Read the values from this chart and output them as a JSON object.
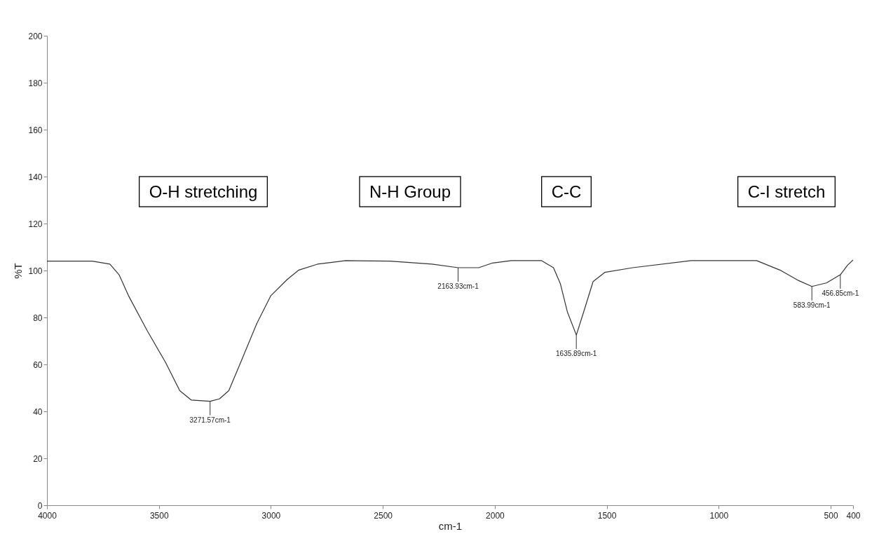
{
  "chart_data": {
    "type": "line",
    "xlabel": "cm-1",
    "ylabel": "%T",
    "x": [
      4000,
      3798,
      3719,
      3678,
      3636,
      3553,
      3469,
      3407,
      3355,
      3271.57,
      3230,
      3188,
      3136,
      3063,
      3000,
      2927,
      2875,
      2792,
      2708,
      2667,
      2468,
      2281,
      2163.93,
      2072,
      2010,
      1926,
      1791,
      1738,
      1707,
      1676,
      1635.89,
      1603,
      1561,
      1509,
      1384,
      1123,
      831,
      727,
      643,
      583.99,
      519,
      456.85,
      425,
      400
    ],
    "series": [
      {
        "color": "#333333",
        "values": [
          104,
          104,
          102.7,
          98.2,
          89.3,
          74.5,
          60.6,
          48.8,
          44.8,
          44.3,
          45.3,
          48.8,
          60.6,
          77.4,
          89.3,
          96.2,
          100.2,
          102.7,
          103.7,
          104.2,
          104,
          102.7,
          101.2,
          101.2,
          103.2,
          104.2,
          104.2,
          101.2,
          94.3,
          82.4,
          72.5,
          82.4,
          95.3,
          99.2,
          101.2,
          104.2,
          104.2,
          100.2,
          95.7,
          93.2,
          94.7,
          98.2,
          102.2,
          104.5
        ]
      }
    ],
    "xlim": [
      4000,
      400
    ],
    "xticks": [
      4000,
      3500,
      3000,
      2500,
      2000,
      1500,
      1000,
      500,
      400
    ],
    "ylim": [
      0,
      200
    ],
    "yticks": [
      0,
      20,
      40,
      60,
      80,
      100,
      120,
      140,
      160,
      180,
      200
    ],
    "grid": false,
    "marker": "none",
    "line_style": "solid",
    "annotations": [
      "O-H stretching",
      "N-H Group",
      "C-C",
      "C-I stretch",
      {
        "text": "3271.57cm-1",
        "x": 3271.57,
        "y": 44.3
      },
      {
        "text": "2163.93cm-1",
        "x": 2163.93,
        "y": 101.2
      },
      {
        "text": "1635.89cm-1",
        "x": 1635.89,
        "y": 72.5
      },
      {
        "text": "583.99cm-1",
        "x": 583.99,
        "y": 93.2
      },
      {
        "text": "456.85cm-1",
        "x": 456.85,
        "y": 98.2
      }
    ]
  }
}
